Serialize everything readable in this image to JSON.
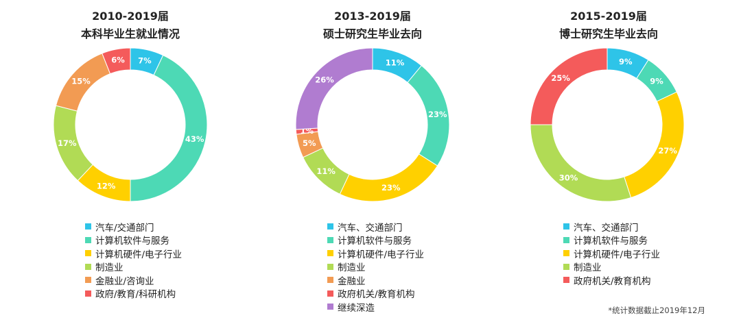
{
  "chart_data": [
    {
      "type": "donut",
      "title": "2010-2019届",
      "subtitle": "本科毕业生就业情况",
      "slices": [
        {
          "label": "汽车/交通部门",
          "value": 7,
          "display": "7%",
          "color": "#2EC4E8"
        },
        {
          "label": "计算机软件与服务",
          "value": 43,
          "display": "43%",
          "color": "#4DD9B5"
        },
        {
          "label": "计算机硬件/电子行业",
          "value": 12,
          "display": "12%",
          "color": "#FFD000"
        },
        {
          "label": "制造业",
          "value": 17,
          "display": "17%",
          "color": "#B1DB55"
        },
        {
          "label": "金融业/咨询业",
          "value": 15,
          "display": "15%",
          "color": "#F29B53"
        },
        {
          "label": "政府/教育/科研机构",
          "value": 6,
          "display": "6%",
          "color": "#F45B5B"
        }
      ]
    },
    {
      "type": "donut",
      "title": "2013-2019届",
      "subtitle": "硕士研究生毕业去向",
      "slices": [
        {
          "label": "汽车、交通部门",
          "value": 11,
          "display": "11%",
          "color": "#2EC4E8"
        },
        {
          "label": "计算机软件与服务",
          "value": 23,
          "display": "23%",
          "color": "#4DD9B5"
        },
        {
          "label": "计算机硬件/电子行业",
          "value": 23,
          "display": "23%",
          "color": "#FFD000"
        },
        {
          "label": "制造业",
          "value": 11,
          "display": "11%",
          "color": "#B1DB55"
        },
        {
          "label": "金融业",
          "value": 5,
          "display": "5%",
          "color": "#F29B53"
        },
        {
          "label": "政府机关/教育机构",
          "value": 1,
          "display": "1%",
          "color": "#F45B5B"
        },
        {
          "label": "继续深造",
          "value": 26,
          "display": "26%",
          "color": "#B07CD0"
        }
      ]
    },
    {
      "type": "donut",
      "title": "2015-2019届",
      "subtitle": "博士研究生毕业去向",
      "slices": [
        {
          "label": "汽车、交通部门",
          "value": 9,
          "display": "9%",
          "color": "#2EC4E8"
        },
        {
          "label": "计算机软件与服务",
          "value": 9,
          "display": "9%",
          "color": "#4DD9B5"
        },
        {
          "label": "计算机硬件/电子行业",
          "value": 27,
          "display": "27%",
          "color": "#FFD000"
        },
        {
          "label": "制造业",
          "value": 30,
          "display": "30%",
          "color": "#B1DB55"
        },
        {
          "label": "政府机关/教育机构",
          "value": 25,
          "display": "25%",
          "color": "#F45B5B"
        }
      ]
    }
  ],
  "footnote": "*统计数据截止2019年12月"
}
